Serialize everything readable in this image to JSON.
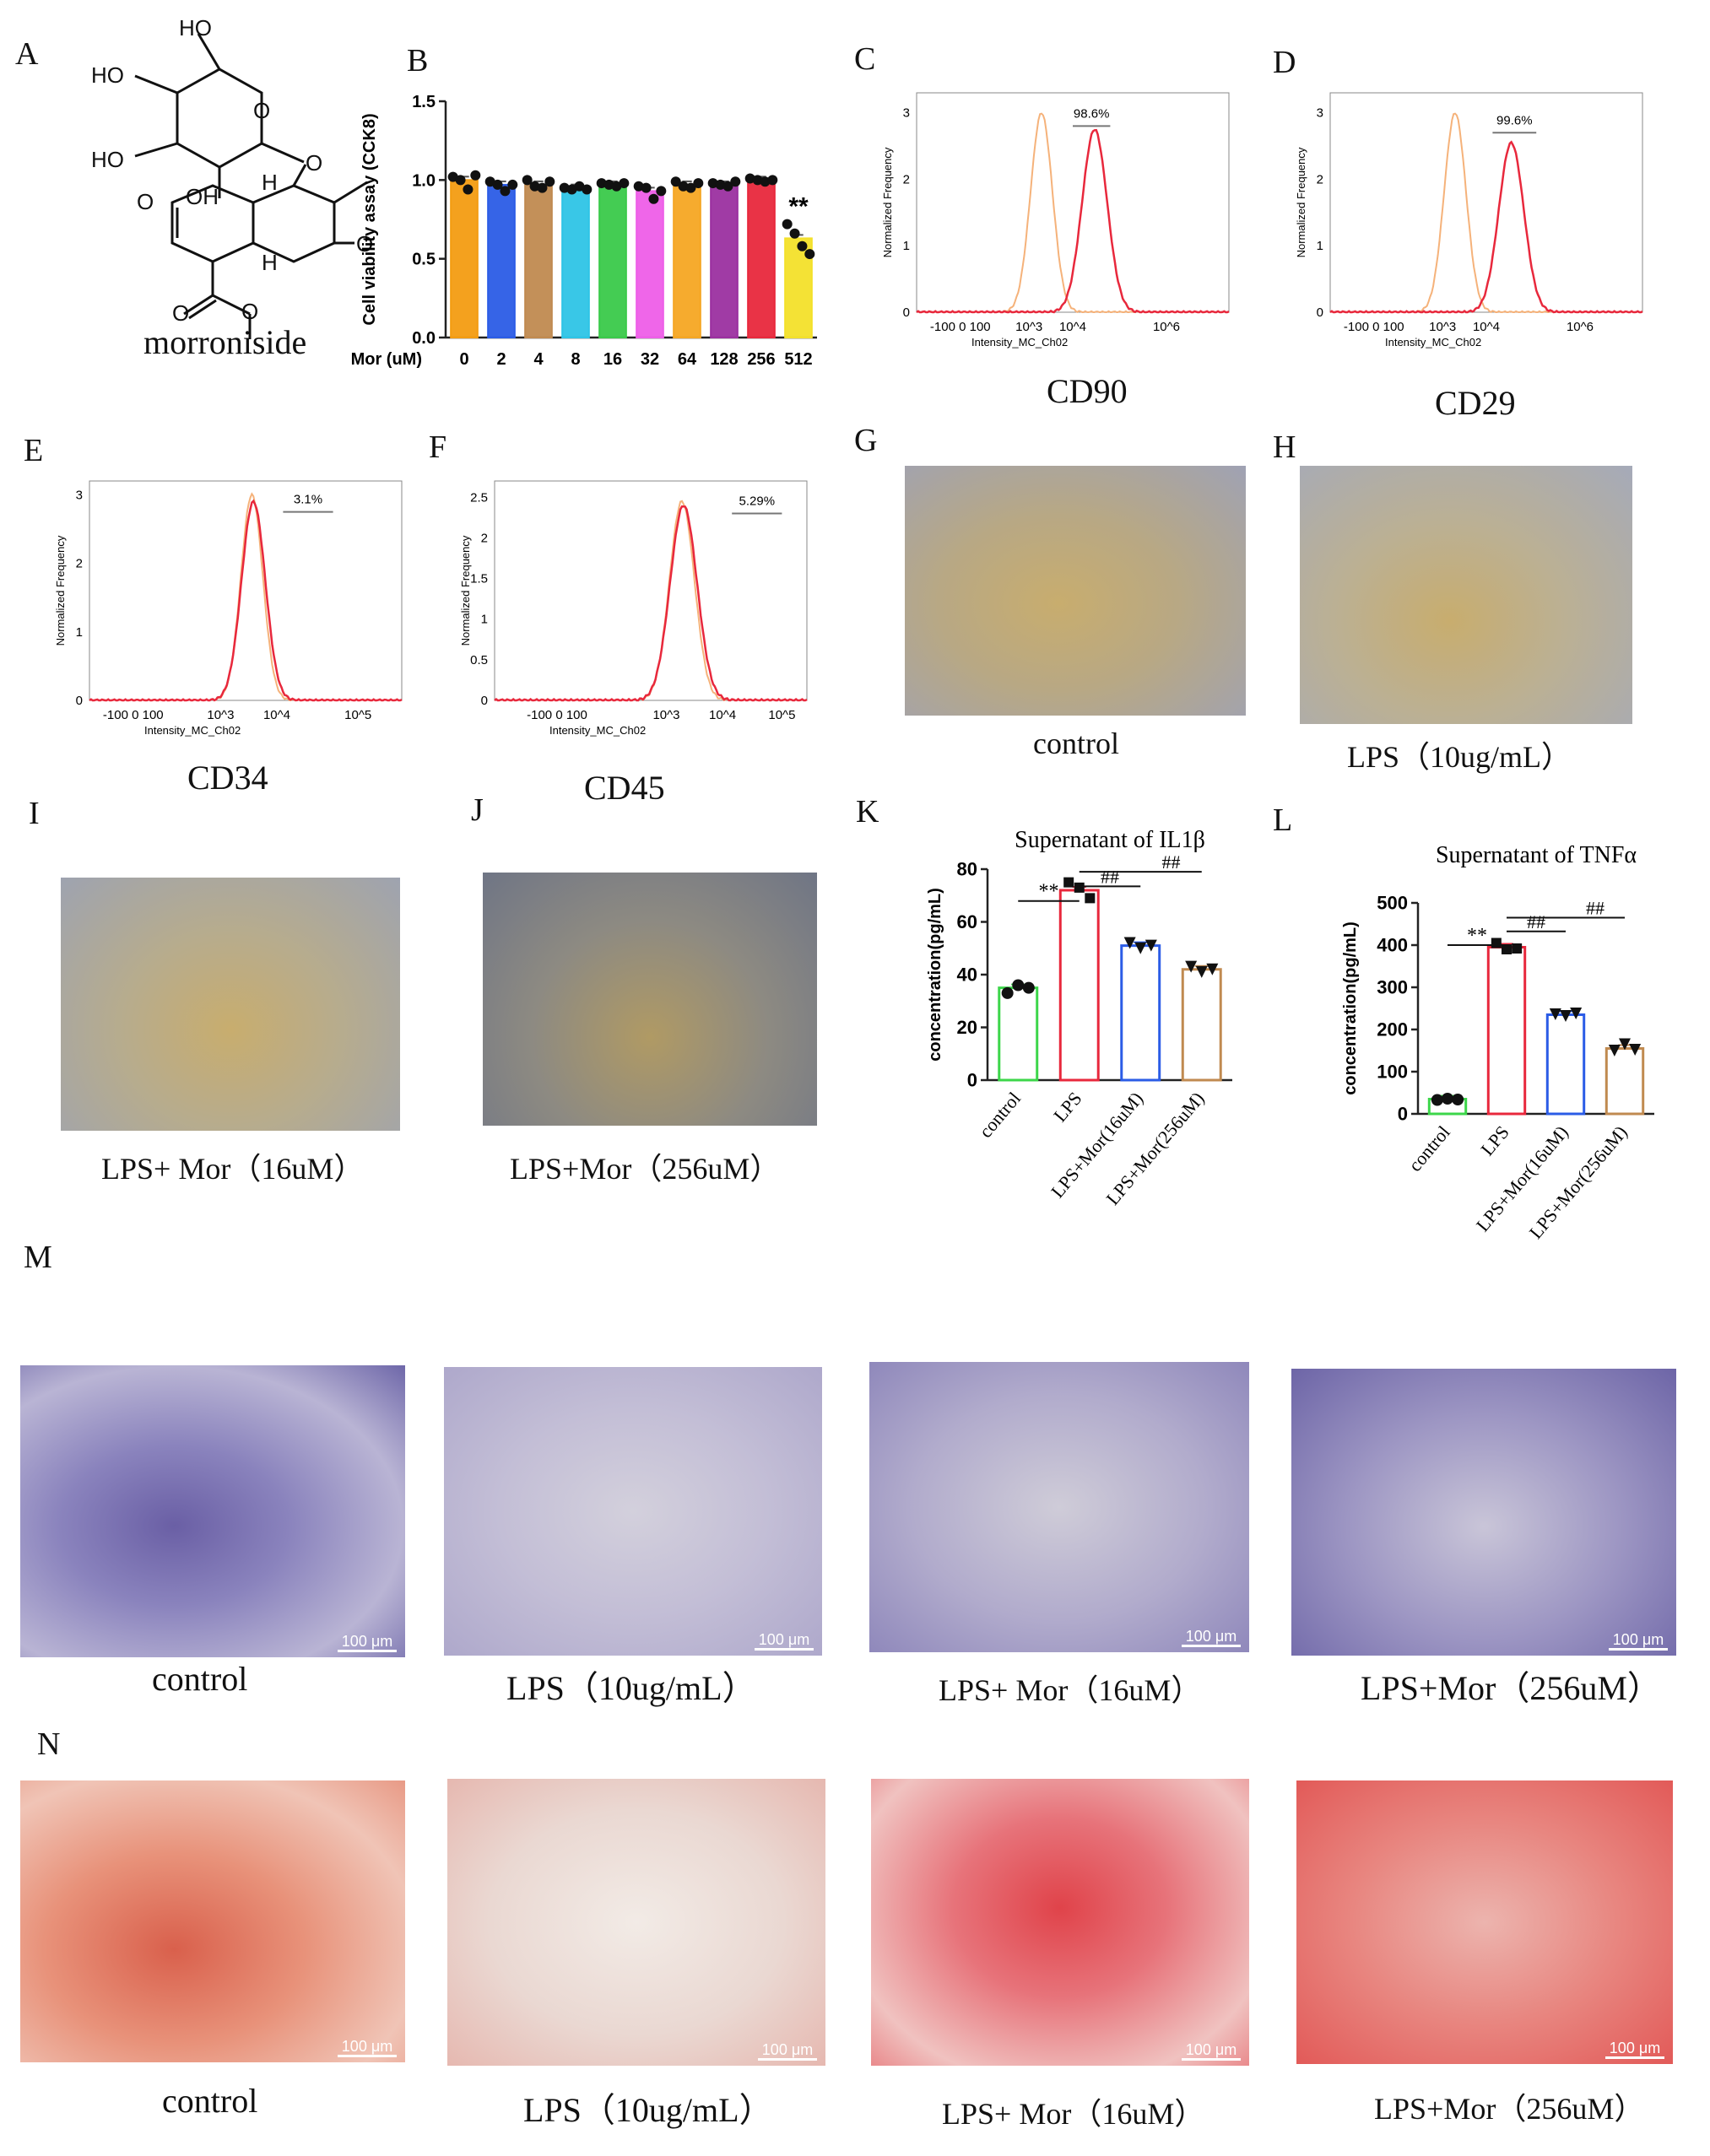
{
  "panel_letters": {
    "A": "A",
    "B": "B",
    "C": "C",
    "D": "D",
    "E": "E",
    "F": "F",
    "G": "G",
    "H": "H",
    "I": "I",
    "J": "J",
    "K": "K",
    "L": "L",
    "M": "M",
    "N": "N"
  },
  "structure": {
    "name": "morroniside",
    "atom_labels": [
      "HO",
      "HO",
      "HO",
      "O",
      "OH",
      "O",
      "O",
      "H",
      "H",
      "O",
      "O",
      "O"
    ]
  },
  "captions": {
    "cd90": "CD90",
    "cd29": "CD29",
    "cd34": "CD34",
    "cd45": "CD45",
    "g": "control",
    "h": "LPS（10ug/mL）",
    "i": "LPS+ Mor（16uM）",
    "j": "LPS+Mor（256uM）",
    "m": [
      "control",
      "LPS（10ug/mL）",
      "LPS+ Mor（16uM）",
      "LPS+Mor（256uM）"
    ],
    "n": [
      "control",
      "LPS（10ug/mL）",
      "LPS+ Mor（16uM）",
      "LPS+Mor（256uM）"
    ]
  },
  "scale_bar_label": "100 μm",
  "chart_data": [
    {
      "id": "B",
      "type": "bar",
      "ylabel": "Cell viability assay (CCK8)",
      "xlabel": "Mor (uM)",
      "categories": [
        "0",
        "2",
        "4",
        "8",
        "16",
        "32",
        "64",
        "128",
        "256",
        "512"
      ],
      "values": [
        1.0,
        0.97,
        0.97,
        0.95,
        0.97,
        0.93,
        0.97,
        0.97,
        1.0,
        0.63
      ],
      "points": [
        [
          1.02,
          1.0,
          0.94,
          1.03
        ],
        [
          0.99,
          0.97,
          0.93,
          0.97
        ],
        [
          1.0,
          0.96,
          0.95,
          0.99
        ],
        [
          0.95,
          0.94,
          0.96,
          0.94
        ],
        [
          0.98,
          0.97,
          0.96,
          0.98
        ],
        [
          0.96,
          0.95,
          0.88,
          0.93
        ],
        [
          0.99,
          0.96,
          0.95,
          0.98
        ],
        [
          0.98,
          0.97,
          0.96,
          0.99
        ],
        [
          1.01,
          1.0,
          0.99,
          1.0
        ],
        [
          0.72,
          0.66,
          0.58,
          0.53
        ]
      ],
      "colors": [
        "#f39c12",
        "#2b5ce6",
        "#c08a50",
        "#2ec4e6",
        "#3ac94a",
        "#ee5ee8",
        "#f5a623",
        "#9b30a0",
        "#e8283c",
        "#f3e02a"
      ],
      "ylim": [
        0,
        1.5
      ],
      "yticks": [
        "0.0",
        "0.5",
        "1.0",
        "1.5"
      ],
      "annotations": [
        {
          "category": "512",
          "text": "**"
        }
      ]
    },
    {
      "id": "C",
      "type": "area",
      "title": "",
      "xlabel": "Intensity_MC_Ch02",
      "ylabel": "Normalized Frequency",
      "xticks": [
        "-100 0 100",
        "10^3",
        "10^4",
        "10^6"
      ],
      "yticks": [
        "0",
        "1",
        "2",
        "3"
      ],
      "gate_label": "98.6%",
      "caption": "CD90"
    },
    {
      "id": "D",
      "type": "area",
      "xlabel": "Intensity_MC_Ch02",
      "ylabel": "Normalized Frequency",
      "xticks": [
        "-100 0 100",
        "10^3",
        "10^4",
        "10^6"
      ],
      "yticks": [
        "0",
        "1",
        "2",
        "3"
      ],
      "gate_label": "99.6%",
      "caption": "CD29"
    },
    {
      "id": "E",
      "type": "area",
      "xlabel": "Intensity_MC_Ch02",
      "ylabel": "Normalized Frequency",
      "xticks": [
        "-100 0 100",
        "10^3",
        "10^4",
        "10^5"
      ],
      "yticks": [
        "0",
        "1",
        "2",
        "3"
      ],
      "gate_label": "3.1%",
      "caption": "CD34"
    },
    {
      "id": "F",
      "type": "area",
      "xlabel": "Intensity_MC_Ch02",
      "ylabel": "Normalized Frequency",
      "xticks": [
        "-100 0 100",
        "10^3",
        "10^4",
        "10^5"
      ],
      "yticks": [
        "0",
        "0.5",
        "1",
        "1.5",
        "2",
        "2.5"
      ],
      "gate_label": "5.29%",
      "caption": "CD45"
    },
    {
      "id": "K",
      "type": "bar",
      "title": "Supernatant of IL1β",
      "ylabel": "concentration(pg/mL)",
      "categories": [
        "control",
        "LPS",
        "LPS+Mor(16uM)",
        "LPS+Mor(256uM)"
      ],
      "values": [
        35,
        72,
        51,
        42
      ],
      "points": [
        [
          33,
          36,
          35
        ],
        [
          75,
          73,
          69
        ],
        [
          52,
          50,
          51
        ],
        [
          43,
          41,
          42
        ]
      ],
      "colors": [
        "#3cd64a",
        "#e8283c",
        "#2b5ce6",
        "#c08a50"
      ],
      "ylim": [
        0,
        80
      ],
      "yticks": [
        "0",
        "20",
        "40",
        "60",
        "80"
      ],
      "annotations": [
        "**",
        "##",
        "##"
      ]
    },
    {
      "id": "L",
      "type": "bar",
      "title": "Supernatant of TNFα",
      "ylabel": "concentration(pg/mL)",
      "categories": [
        "control",
        "LPS",
        "LPS+Mor(16uM)",
        "LPS+Mor(256uM)"
      ],
      "values": [
        35,
        395,
        235,
        155
      ],
      "points": [
        [
          33,
          36,
          34
        ],
        [
          405,
          390,
          392
        ],
        [
          236,
          232,
          238
        ],
        [
          150,
          165,
          152
        ]
      ],
      "colors": [
        "#3cd64a",
        "#e8283c",
        "#2b5ce6",
        "#c08a50"
      ],
      "ylim": [
        0,
        500
      ],
      "yticks": [
        "0",
        "100",
        "200",
        "300",
        "400",
        "500"
      ],
      "annotations": [
        "**",
        "##",
        "##"
      ]
    }
  ]
}
